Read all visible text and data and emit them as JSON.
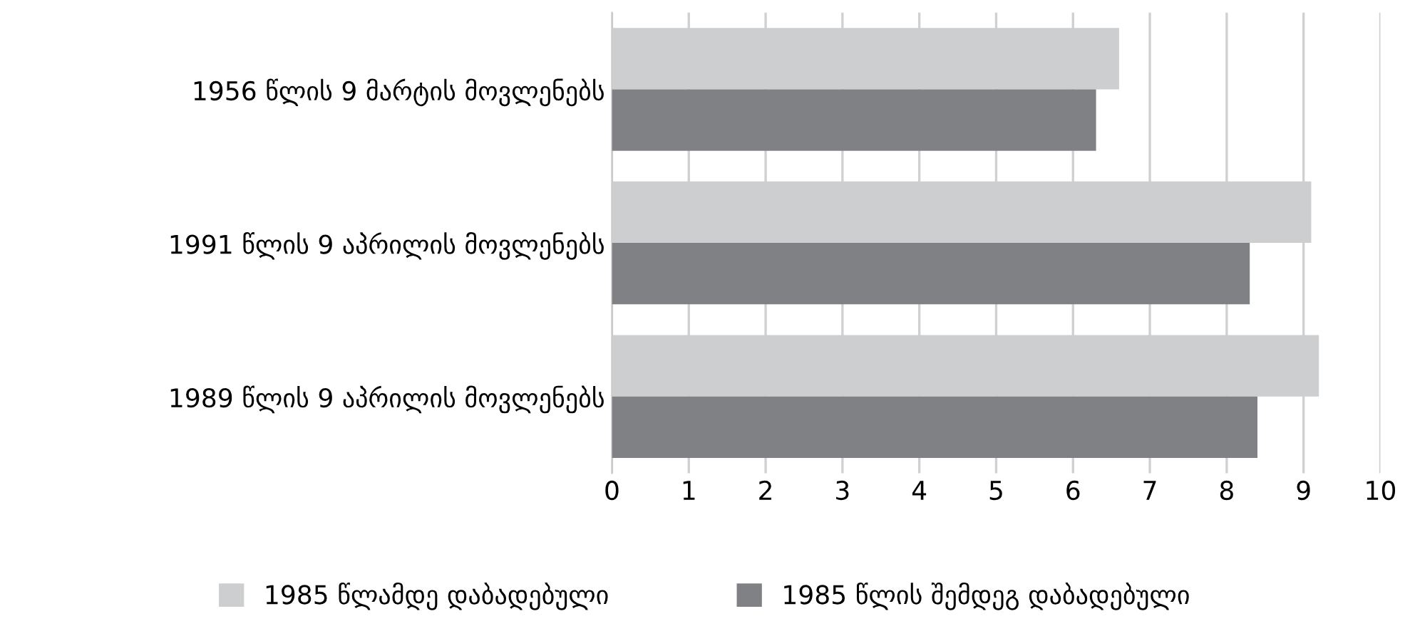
{
  "chart_data": {
    "type": "bar",
    "orientation": "horizontal",
    "categories": [
      "1956 წლის 9 მარტის მოვლენებს",
      "1991 წლის 9 აპრილის მოვლენებს",
      "1989 წლის 9 აპრილის მოვლენებს"
    ],
    "series": [
      {
        "name": "1985 წლამდე დაბადებული",
        "color": "#cdced0",
        "values": [
          6.6,
          9.1,
          9.2
        ]
      },
      {
        "name": "1985 წლის შემდეგ დაბადებული",
        "color": "#808184",
        "values": [
          6.3,
          8.3,
          8.4
        ]
      }
    ],
    "xlim": [
      0,
      10
    ],
    "xticks": [
      0,
      1,
      2,
      3,
      4,
      5,
      6,
      7,
      8,
      9,
      10
    ],
    "grid": "x",
    "legend": "bottom"
  }
}
